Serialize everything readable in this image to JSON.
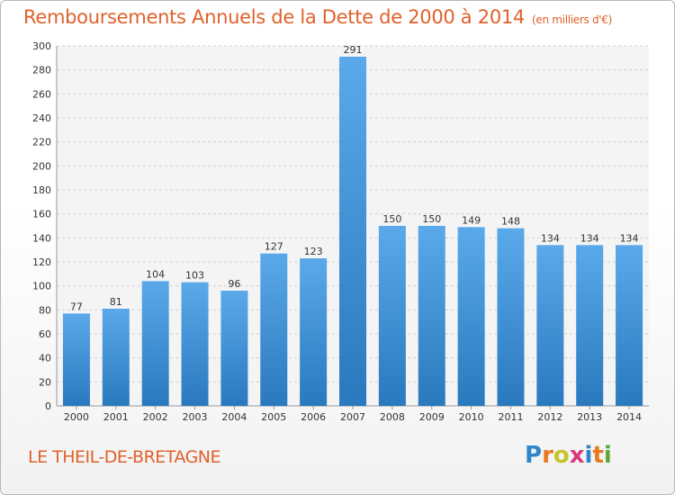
{
  "chart_data": {
    "type": "bar",
    "title": "Remboursements Annuels de la Dette de 2000 à 2014",
    "subtitle": "(en milliers d'€)",
    "categories": [
      "2000",
      "2001",
      "2002",
      "2003",
      "2004",
      "2005",
      "2006",
      "2007",
      "2008",
      "2009",
      "2010",
      "2011",
      "2012",
      "2013",
      "2014"
    ],
    "values": [
      77,
      81,
      104,
      103,
      96,
      127,
      123,
      291,
      150,
      150,
      149,
      148,
      134,
      134,
      134
    ],
    "ylim": [
      0,
      300
    ],
    "yticks": [
      0,
      20,
      40,
      60,
      80,
      100,
      120,
      140,
      160,
      180,
      200,
      220,
      240,
      260,
      280,
      300
    ],
    "grid": true,
    "bar_color": "#3d8fd6"
  },
  "footer": {
    "place": "LE THEIL-DE-BRETAGNE"
  },
  "brand": {
    "letters": [
      "P",
      "r",
      "o",
      "x",
      "i",
      "t",
      "i"
    ],
    "colors": [
      "#2f87c9",
      "#e87a1d",
      "#c7c42b",
      "#d83b7c",
      "#2f87c9",
      "#e87a1d",
      "#5da73a"
    ]
  }
}
